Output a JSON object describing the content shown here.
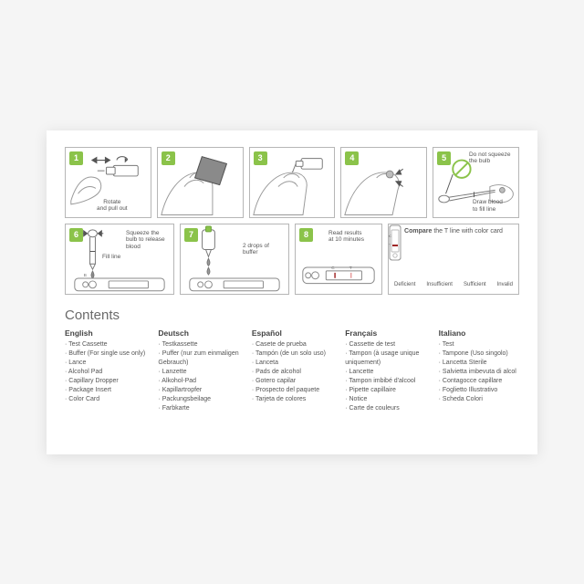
{
  "accent": "#8bc34a",
  "steps": {
    "s1": {
      "num": "1",
      "caption": "Rotate\nand pull out"
    },
    "s2": {
      "num": "2"
    },
    "s3": {
      "num": "3"
    },
    "s4": {
      "num": "4"
    },
    "s5": {
      "num": "5",
      "caption_top": "Do not squeeze\nthe bulb",
      "caption_bottom": "Draw blood\nto fill line"
    },
    "s6": {
      "num": "6",
      "caption_top": "Squeeze the\nbulb to release\nblood",
      "caption_bottom": "Fill line"
    },
    "s7": {
      "num": "7",
      "caption": "2 drops of\nbuffer"
    },
    "s8": {
      "num": "8",
      "caption": "Read results\nat 10 minutes"
    }
  },
  "compare": {
    "title_prefix": "Compare",
    "title_rest": " the T line with color card",
    "items": [
      {
        "label": "Deficient",
        "c": "#a02828",
        "t": "#f7adad"
      },
      {
        "label": "Insufficient",
        "c": "#a02828",
        "t": "#e26a6a"
      },
      {
        "label": "Sufficient",
        "c": "#a02828",
        "t": "#a02828"
      },
      {
        "label": "Invalid",
        "c": null,
        "t": "#a02828"
      }
    ]
  },
  "contents": {
    "heading": "Contents",
    "langs": [
      {
        "name": "English",
        "items": [
          "Test Cassette",
          "Buffer (For single use only)",
          "Lance",
          "Alcohol Pad",
          "Capillary Dropper",
          "Package Insert",
          "Color Card"
        ]
      },
      {
        "name": "Deutsch",
        "items": [
          "Testkassette",
          "Puffer (nur zum einmaligen Gebrauch)",
          "Lanzette",
          "Alkohol-Pad",
          "Kapillartropfer",
          "Packungsbeilage",
          "Farbkarte"
        ]
      },
      {
        "name": "Español",
        "items": [
          "Casete de prueba",
          "Tampón (de un solo uso)",
          "Lanceta",
          "Pads de alcohol",
          "Gotero capilar",
          "Prospecto del paquete",
          "Tarjeta de colores"
        ]
      },
      {
        "name": "Français",
        "items": [
          "Cassette de test",
          "Tampon (à usage unique uniquement)",
          "Lancette",
          "Tampon imbibé d'alcool",
          "Pipette capillaire",
          "Notice",
          "Carte de couleurs"
        ]
      },
      {
        "name": "Italiano",
        "items": [
          "Test",
          "Tampone (Uso singolo)",
          "Lancetta Sterile",
          "Salvietta imbevuta di alcol",
          "Contagocce capillare",
          "Foglietto Illustrativo",
          "Scheda Colori"
        ]
      }
    ]
  }
}
